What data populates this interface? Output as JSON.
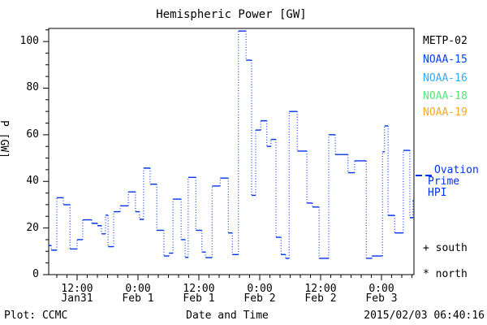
{
  "title": "Hemispheric Power [GW]",
  "colors": {
    "background": "#ffffff",
    "axis": "#000000",
    "data_line": "#0033ee"
  },
  "legend": {
    "satellites": [
      {
        "label": "METP-02",
        "color": "#000000"
      },
      {
        "label": "NOAA-15",
        "color": "#0044ff"
      },
      {
        "label": "NOAA-16",
        "color": "#33aaff"
      },
      {
        "label": "NOAA-18",
        "color": "#55e878"
      },
      {
        "label": "NOAA-19",
        "color": "#ffa826"
      }
    ],
    "ovation": {
      "line1": "Ovation",
      "line2": "Prime HPI",
      "color": "#0033ee"
    },
    "south_label": "+ south",
    "north_label": "* north"
  },
  "footer": {
    "left": "Plot: CCMC",
    "xlabel": "Date and Time",
    "timestamp": "2015/02/03 06:40:16"
  },
  "chart_data": {
    "type": "line",
    "style": "step-post, dotted vertical connectors",
    "title": "Hemispheric Power [GW]",
    "xlabel": "Date and Time",
    "ylabel": "P [GW]",
    "ylim": [
      0,
      105.6
    ],
    "xlim_hours": [
      0,
      72
    ],
    "grid": false,
    "legend_position": "right-outside",
    "yticks": [
      0,
      20,
      40,
      60,
      80,
      100
    ],
    "ytick_labels": [
      "0",
      "20",
      "40",
      "60",
      "80",
      "100"
    ],
    "y_minor_step": 5,
    "x_minor_step_hours": 2,
    "x_minor_start_hour": 1.6,
    "xticks": [
      {
        "hour": 5.6,
        "time": "12:00",
        "date": "Jan31"
      },
      {
        "hour": 17.6,
        "time": "0:00",
        "date": "Feb 1"
      },
      {
        "hour": 29.6,
        "time": "12:00",
        "date": "Feb 1"
      },
      {
        "hour": 41.6,
        "time": "0:00",
        "date": "Feb 2"
      },
      {
        "hour": 53.6,
        "time": "12:00",
        "date": "Feb 2"
      },
      {
        "hour": 65.6,
        "time": "0:00",
        "date": "Feb 3"
      }
    ],
    "series": [
      {
        "name": "Ovation Prime HPI",
        "color": "#0033ee",
        "units": "GW",
        "points_hour_value": [
          [
            0,
            12.5
          ],
          [
            0.5,
            10.5
          ],
          [
            1.6,
            33
          ],
          [
            2.9,
            30
          ],
          [
            4.2,
            11
          ],
          [
            5.6,
            15
          ],
          [
            6.7,
            23.5
          ],
          [
            8.5,
            22
          ],
          [
            9.6,
            21
          ],
          [
            10.4,
            17.5
          ],
          [
            11.2,
            25.5
          ],
          [
            11.7,
            12
          ],
          [
            12.8,
            27
          ],
          [
            14.1,
            29.5
          ],
          [
            15.7,
            35.5
          ],
          [
            17.1,
            27
          ],
          [
            17.9,
            23.7
          ],
          [
            18.7,
            45.7
          ],
          [
            20,
            38.8
          ],
          [
            21.3,
            19
          ],
          [
            22.7,
            8
          ],
          [
            23.7,
            9.2
          ],
          [
            24.5,
            32.4
          ],
          [
            26.1,
            15
          ],
          [
            26.9,
            7.4
          ],
          [
            27.5,
            41.7
          ],
          [
            29,
            19
          ],
          [
            30.2,
            9.7
          ],
          [
            30.9,
            7.3
          ],
          [
            32.2,
            38
          ],
          [
            33.8,
            41.4
          ],
          [
            35.4,
            17.9
          ],
          [
            36.2,
            8.6
          ],
          [
            37.4,
            104.5
          ],
          [
            38.9,
            92
          ],
          [
            40,
            34
          ],
          [
            40.8,
            62
          ],
          [
            41.8,
            66
          ],
          [
            43,
            55
          ],
          [
            43.8,
            58
          ],
          [
            44.8,
            16
          ],
          [
            45.8,
            8.6
          ],
          [
            46.7,
            7
          ],
          [
            47.4,
            70
          ],
          [
            49,
            53
          ],
          [
            50.9,
            30.7
          ],
          [
            52,
            29
          ],
          [
            53.3,
            7
          ],
          [
            55.2,
            60
          ],
          [
            56.5,
            51.5
          ],
          [
            59,
            43.7
          ],
          [
            60.3,
            48.8
          ],
          [
            62.6,
            7
          ],
          [
            63.7,
            8
          ],
          [
            65.8,
            52.7
          ],
          [
            66.2,
            63.8
          ],
          [
            66.9,
            25.4
          ],
          [
            68.2,
            17.9
          ],
          [
            69.9,
            53.3
          ],
          [
            71.2,
            24.4
          ],
          [
            71.8,
            31.8
          ]
        ]
      }
    ]
  }
}
